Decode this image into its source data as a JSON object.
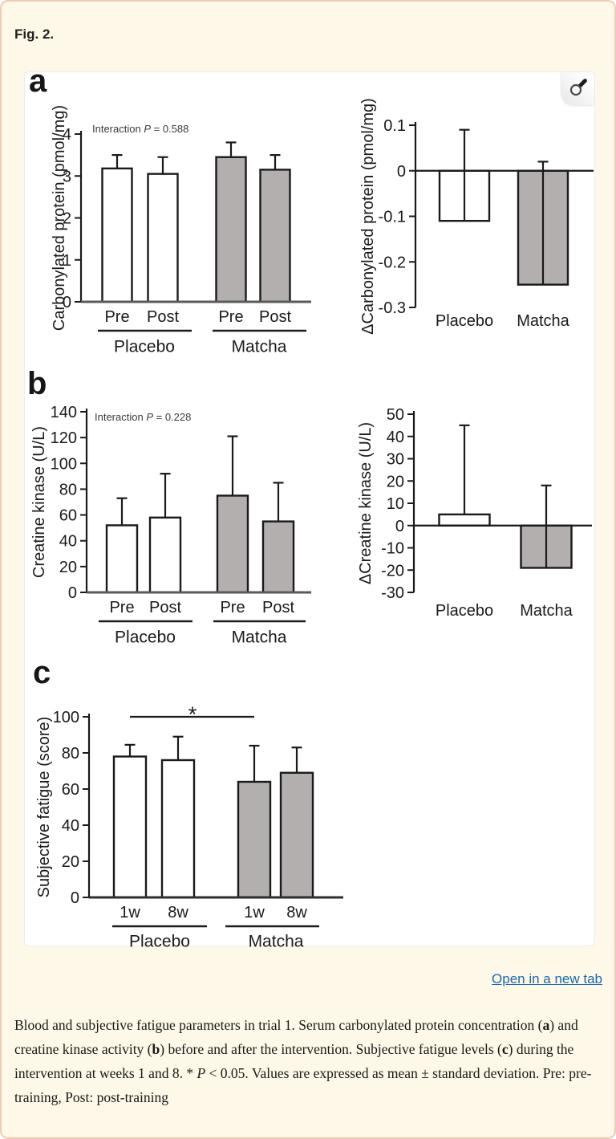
{
  "page": {
    "background": "#fdf8e7",
    "border_color": "#f0cbb3"
  },
  "figure_label": "Fig. 2.",
  "panels": [
    {
      "letter": "a"
    },
    {
      "letter": "b"
    },
    {
      "letter": "c"
    }
  ],
  "viewer": {
    "zoom_button_icon": "magnifier-icon"
  },
  "link": {
    "label": "Open in a new tab",
    "color": "#1769b5"
  },
  "colors": {
    "bar_white": "#ffffff",
    "bar_gray": "#b3afae",
    "axis": "#1a1a1a",
    "annotation": "#3a3a3a"
  },
  "caption": {
    "segments": [
      {
        "t": "Blood and subjective fatigue parameters in trial 1. Serum carbonylated protein concentration ("
      },
      {
        "t": "a",
        "b": true
      },
      {
        "t": ") and creatine kinase activity ("
      },
      {
        "t": "b",
        "b": true
      },
      {
        "t": ") before and after the intervention. Subjective fatigue levels ("
      },
      {
        "t": "c",
        "b": true
      },
      {
        "t": ") during the intervention at weeks 1 and 8. * "
      },
      {
        "t": "P",
        "i": true
      },
      {
        "t": " < 0.05. Values are expressed as mean ± standard deviation. Pre: pre-training, Post: post-training"
      }
    ]
  },
  "chart_data": [
    {
      "id": "a_left",
      "panel": "a",
      "type": "bar",
      "ylabel": "Carbonylated protein (pmol/mg)",
      "ylim": [
        0,
        4
      ],
      "yticks": [
        {
          "v": 0,
          "label": "0"
        },
        {
          "v": 1,
          "label": "1"
        },
        {
          "v": 2,
          "label": "2"
        },
        {
          "v": 3,
          "label": "3"
        },
        {
          "v": 4,
          "label": "4"
        }
      ],
      "annotation": {
        "prefix": "Interaction  ",
        "italic": "P",
        "suffix": " = 0.588"
      },
      "categories": [
        "Pre",
        "Post",
        "Pre",
        "Post"
      ],
      "values": [
        3.18,
        3.05,
        3.45,
        3.15
      ],
      "sd_up": [
        0.32,
        0.4,
        0.35,
        0.35
      ],
      "bar_fill": [
        "white",
        "white",
        "gray",
        "gray"
      ],
      "groups": [
        {
          "label": "Placebo"
        },
        {
          "label": "Matcha"
        }
      ]
    },
    {
      "id": "a_right",
      "panel": "a",
      "type": "bar",
      "ylabel": "ΔCarbonylated protein (pmol/mg)",
      "ylim": [
        -0.3,
        0.1
      ],
      "yticks": [
        {
          "v": 0.1,
          "label": "0.1"
        },
        {
          "v": 0,
          "label": "0"
        },
        {
          "v": -0.1,
          "label": "-0.1"
        },
        {
          "v": -0.2,
          "label": "-0.2"
        },
        {
          "v": -0.3,
          "label": "-0.3"
        }
      ],
      "categories": [
        "Placebo",
        "Matcha"
      ],
      "values": [
        -0.11,
        -0.25
      ],
      "sd_up": [
        0.2,
        0.27
      ],
      "bar_fill": [
        "white",
        "gray"
      ]
    },
    {
      "id": "b_left",
      "panel": "b",
      "type": "bar",
      "ylabel": "Creatine kinase (U/L)",
      "ylim": [
        0,
        140
      ],
      "yticks": [
        {
          "v": 0,
          "label": "0"
        },
        {
          "v": 20,
          "label": "20"
        },
        {
          "v": 40,
          "label": "40"
        },
        {
          "v": 60,
          "label": "60"
        },
        {
          "v": 80,
          "label": "80"
        },
        {
          "v": 100,
          "label": "100"
        },
        {
          "v": 120,
          "label": "120"
        },
        {
          "v": 140,
          "label": "140"
        }
      ],
      "annotation": {
        "prefix": "Interaction  ",
        "italic": "P",
        "suffix": " = 0.228"
      },
      "categories": [
        "Pre",
        "Post",
        "Pre",
        "Post"
      ],
      "values": [
        52,
        58,
        75,
        55
      ],
      "sd_up": [
        21,
        34,
        46,
        30
      ],
      "bar_fill": [
        "white",
        "white",
        "gray",
        "gray"
      ],
      "groups": [
        {
          "label": "Placebo"
        },
        {
          "label": "Matcha"
        }
      ]
    },
    {
      "id": "b_right",
      "panel": "b",
      "type": "bar",
      "ylabel": "ΔCreatine kinase (U/L)",
      "ylim": [
        -30,
        50
      ],
      "yticks": [
        {
          "v": 50,
          "label": "50"
        },
        {
          "v": 40,
          "label": "40"
        },
        {
          "v": 30,
          "label": "30"
        },
        {
          "v": 20,
          "label": "20"
        },
        {
          "v": 10,
          "label": "10"
        },
        {
          "v": 0,
          "label": "0"
        },
        {
          "v": -10,
          "label": "-10"
        },
        {
          "v": -20,
          "label": "-20"
        },
        {
          "v": -30,
          "label": "-30"
        }
      ],
      "categories": [
        "Placebo",
        "Matcha"
      ],
      "values": [
        5,
        -19
      ],
      "sd_up": [
        40,
        37
      ],
      "bar_fill": [
        "white",
        "gray"
      ]
    },
    {
      "id": "c",
      "panel": "c",
      "type": "bar",
      "ylabel": "Subjective fatigue (score)",
      "ylim": [
        0,
        100
      ],
      "yticks": [
        {
          "v": 0,
          "label": "0"
        },
        {
          "v": 20,
          "label": "20"
        },
        {
          "v": 40,
          "label": "40"
        },
        {
          "v": 60,
          "label": "60"
        },
        {
          "v": 80,
          "label": "80"
        },
        {
          "v": 100,
          "label": "100"
        }
      ],
      "categories": [
        "1w",
        "8w",
        "1w",
        "8w"
      ],
      "values": [
        78,
        76,
        64,
        69
      ],
      "sd_up": [
        6.5,
        13,
        20,
        14
      ],
      "bar_fill": [
        "white",
        "white",
        "gray",
        "gray"
      ],
      "groups": [
        {
          "label": "Placebo"
        },
        {
          "label": "Matcha"
        }
      ],
      "significance": {
        "symbol": "*",
        "compares": [
          "Placebo 1w",
          "Matcha 1w"
        ]
      }
    }
  ]
}
